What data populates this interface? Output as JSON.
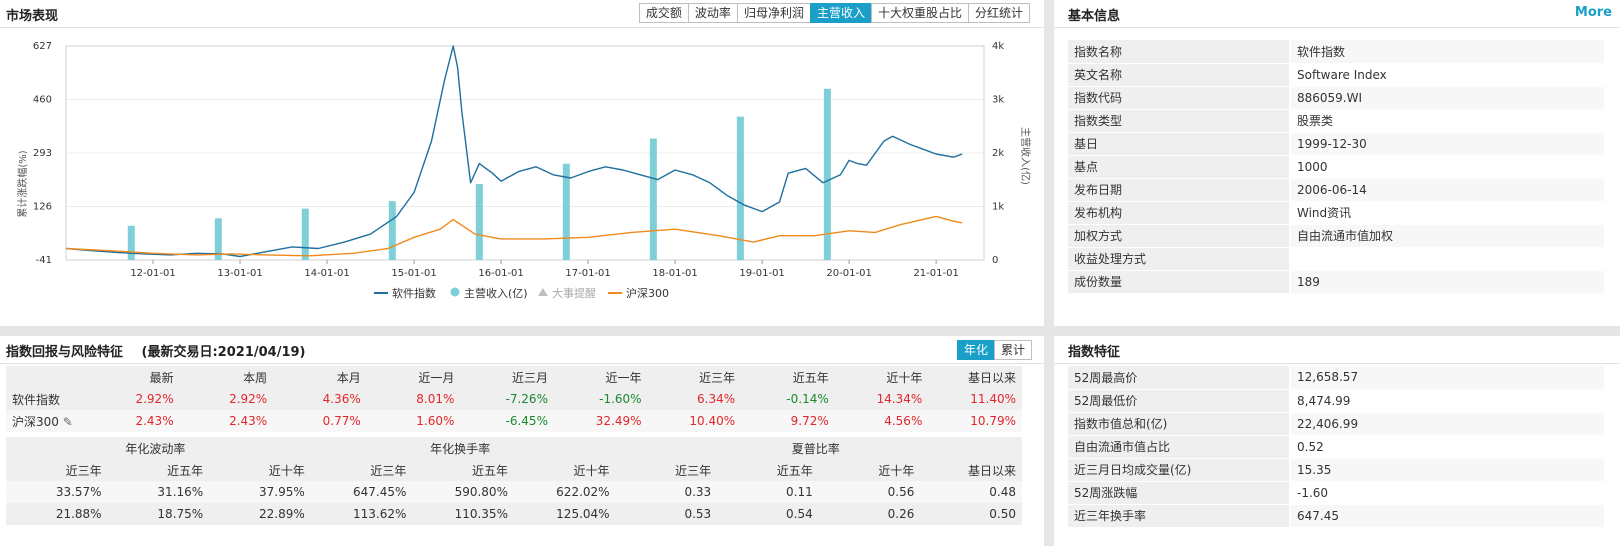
{
  "market": {
    "title": "市场表现",
    "tabs": [
      "成交额",
      "波动率",
      "归母净利润",
      "主营收入",
      "十大权重股占比",
      "分红统计"
    ],
    "active_tab": 3,
    "left_axis_title": "累计涨跌幅(%)",
    "right_axis_title": "主营收入(亿)",
    "legend": {
      "software": "软件指数",
      "revenue": "主营收入(亿)",
      "events": "大事提醒",
      "hs300": "沪深300"
    }
  },
  "colors": {
    "accent": "#1a9fc9",
    "software_line": "#1f6f9f",
    "revenue_bar": "#7ecfd8",
    "hs300_line": "#f08a1c",
    "events": "#c0c0c0",
    "up": "#e3262c",
    "down": "#1a8a2e"
  },
  "chart_data": {
    "type": "line",
    "x_ticks": [
      "12-01-01",
      "13-01-01",
      "14-01-01",
      "15-01-01",
      "16-01-01",
      "17-01-01",
      "18-01-01",
      "19-01-01",
      "20-01-01",
      "21-01-01"
    ],
    "x_range": [
      2011.0,
      2021.55
    ],
    "y_left_ticks": [
      "627",
      "460",
      "293",
      "126",
      "-41"
    ],
    "y_left_range": [
      -41,
      627
    ],
    "y_right_ticks": [
      "4k",
      "3k",
      "2k",
      "1k",
      "0"
    ],
    "y_right_range": [
      0,
      4000
    ],
    "series": [
      {
        "name": "软件指数",
        "axis": "left",
        "x": [
          2011.0,
          2011.3,
          2011.6,
          2011.9,
          2012.2,
          2012.5,
          2012.8,
          2013.0,
          2013.3,
          2013.6,
          2013.9,
          2014.2,
          2014.5,
          2014.8,
          2015.0,
          2015.2,
          2015.35,
          2015.45,
          2015.5,
          2015.55,
          2015.65,
          2015.75,
          2015.9,
          2016.0,
          2016.2,
          2016.4,
          2016.6,
          2016.8,
          2017.0,
          2017.2,
          2017.4,
          2017.6,
          2017.8,
          2018.0,
          2018.2,
          2018.4,
          2018.6,
          2018.8,
          2019.0,
          2019.2,
          2019.3,
          2019.5,
          2019.7,
          2019.9,
          2020.0,
          2020.1,
          2020.2,
          2020.4,
          2020.5,
          2020.7,
          2020.9,
          2021.0,
          2021.2,
          2021.3
        ],
        "y": [
          -5,
          -12,
          -18,
          -22,
          -25,
          -20,
          -22,
          -30,
          -15,
          0,
          -5,
          15,
          40,
          95,
          170,
          330,
          520,
          627,
          560,
          420,
          200,
          260,
          230,
          205,
          235,
          250,
          225,
          215,
          235,
          250,
          240,
          225,
          210,
          240,
          225,
          200,
          160,
          130,
          110,
          140,
          230,
          245,
          200,
          225,
          270,
          260,
          255,
          330,
          345,
          320,
          300,
          290,
          280,
          290
        ]
      },
      {
        "name": "沪深300",
        "axis": "left",
        "x": [
          2011.0,
          2011.5,
          2012.0,
          2012.5,
          2012.9,
          2013.3,
          2013.8,
          2014.3,
          2014.7,
          2015.0,
          2015.3,
          2015.45,
          2015.7,
          2016.0,
          2016.5,
          2017.0,
          2017.5,
          2018.0,
          2018.5,
          2018.9,
          2019.2,
          2019.6,
          2020.0,
          2020.3,
          2020.6,
          2021.0,
          2021.2,
          2021.3
        ],
        "y": [
          -5,
          -12,
          -20,
          -25,
          -22,
          -25,
          -28,
          -20,
          -5,
          30,
          55,
          85,
          40,
          25,
          25,
          30,
          45,
          55,
          35,
          15,
          35,
          35,
          50,
          45,
          70,
          95,
          80,
          75
        ]
      }
    ],
    "bars": {
      "name": "主营收入(亿)",
      "axis": "right",
      "x": [
        2011.75,
        2012.75,
        2013.75,
        2014.75,
        2015.75,
        2016.75,
        2017.75,
        2018.75,
        2019.75
      ],
      "values": [
        640,
        780,
        960,
        1100,
        1420,
        1800,
        2270,
        2680,
        3200
      ]
    }
  },
  "basic": {
    "title": "基本信息",
    "more": "More",
    "rows": [
      {
        "k": "指数名称",
        "v": "软件指数"
      },
      {
        "k": "英文名称",
        "v": "Software Index"
      },
      {
        "k": "指数代码",
        "v": "886059.WI"
      },
      {
        "k": "指数类型",
        "v": "股票类"
      },
      {
        "k": "基日",
        "v": "1999-12-30"
      },
      {
        "k": "基点",
        "v": "1000"
      },
      {
        "k": "发布日期",
        "v": "2006-06-14"
      },
      {
        "k": "发布机构",
        "v": "Wind资讯"
      },
      {
        "k": "加权方式",
        "v": "自由流通市值加权"
      },
      {
        "k": "收益处理方式",
        "v": ""
      },
      {
        "k": "成份数量",
        "v": "189"
      }
    ]
  },
  "returns": {
    "title": "指数回报与风险特征",
    "date_label": "(最新交易日:2021/04/19)",
    "toggle": [
      "年化",
      "累计"
    ],
    "headers": [
      "最新",
      "本周",
      "本月",
      "近一月",
      "近三月",
      "近一年",
      "近三年",
      "近五年",
      "近十年",
      "基日以来"
    ],
    "rows": [
      {
        "name": "软件指数",
        "values": [
          "2.92%",
          "2.92%",
          "4.36%",
          "8.01%",
          "-7.26%",
          "-1.60%",
          "6.34%",
          "-0.14%",
          "14.34%",
          "11.40%"
        ]
      },
      {
        "name": "沪深300",
        "values": [
          "2.43%",
          "2.43%",
          "0.77%",
          "1.60%",
          "-6.45%",
          "32.49%",
          "10.40%",
          "9.72%",
          "4.56%",
          "10.79%"
        ]
      }
    ],
    "groups": [
      "年化波动率",
      "年化换手率",
      "夏普比率"
    ],
    "sub_headers": [
      "近三年",
      "近五年",
      "近十年",
      "近三年",
      "近五年",
      "近十年",
      "近三年",
      "近五年",
      "近十年",
      "基日以来"
    ],
    "risk_rows": [
      [
        "33.57%",
        "31.16%",
        "37.95%",
        "647.45%",
        "590.80%",
        "622.02%",
        "0.33",
        "0.11",
        "0.56",
        "0.48"
      ],
      [
        "21.88%",
        "18.75%",
        "22.89%",
        "113.62%",
        "110.35%",
        "125.04%",
        "0.53",
        "0.54",
        "0.26",
        "0.50"
      ]
    ]
  },
  "features": {
    "title": "指数特征",
    "rows": [
      {
        "k": "52周最高价",
        "v": "12,658.57"
      },
      {
        "k": "52周最低价",
        "v": "8,474.99"
      },
      {
        "k": "指数市值总和(亿)",
        "v": "22,406.99"
      },
      {
        "k": "自由流通市值占比",
        "v": "0.52"
      },
      {
        "k": "近三月日均成交量(亿)",
        "v": "15.35"
      },
      {
        "k": "52周涨跌幅",
        "v": "-1.60"
      },
      {
        "k": "近三年换手率",
        "v": "647.45"
      }
    ]
  }
}
